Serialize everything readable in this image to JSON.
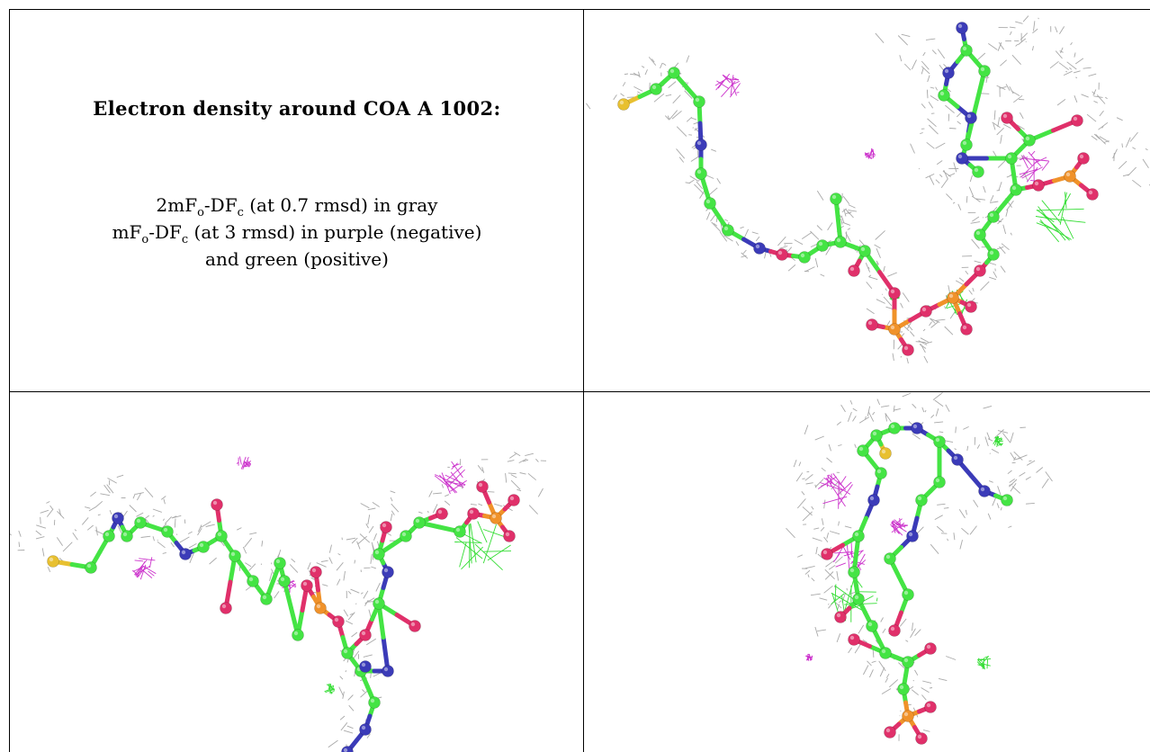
{
  "caption": {
    "title": "Electron density around COA A 1002:",
    "line1_pre": "2mF",
    "line1_sub1": "o",
    "line1_mid": "-DF",
    "line1_sub2": "c",
    "line1_post": " (at 0.7 rmsd) in gray",
    "line2_pre": "mF",
    "line2_sub1": "o",
    "line2_mid": "-DF",
    "line2_sub2": "c",
    "line2_post": " (at 3 rmsd) in purple (negative)",
    "line3": "and green (positive)"
  },
  "colors": {
    "mesh": "#9a9a9a",
    "carbon": "#44e444",
    "nitrogen": "#3b3bb8",
    "oxygen": "#e0306a",
    "phosphorus": "#f0922a",
    "sulfur": "#e8c030",
    "negative": "#cc33cc",
    "positive": "#33dd33"
  },
  "panels": [
    {
      "name": "view-top-right"
    },
    {
      "name": "view-bottom-left"
    },
    {
      "name": "view-bottom-right"
    }
  ]
}
